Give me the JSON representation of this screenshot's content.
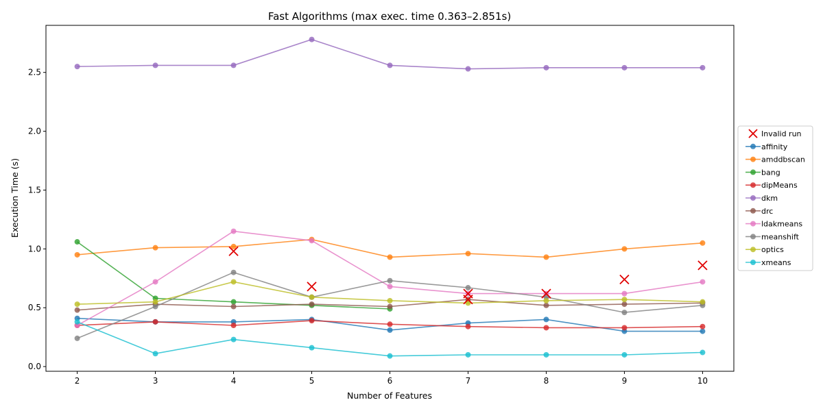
{
  "chart_data": {
    "type": "line",
    "title": "Fast Algorithms (max exec. time 0.363–2.851s)",
    "xlabel": "Number of Features",
    "ylabel": "Execution Time (s)",
    "x": [
      2,
      3,
      4,
      5,
      6,
      7,
      8,
      9,
      10
    ],
    "xlim": [
      1.6,
      10.4
    ],
    "ylim": [
      -0.04,
      2.9
    ],
    "x_ticks": [
      "2",
      "3",
      "4",
      "5",
      "6",
      "7",
      "8",
      "9",
      "10"
    ],
    "y_ticks": [
      "0.0",
      "0.5",
      "1.0",
      "1.5",
      "2.0",
      "2.5"
    ],
    "grid": false,
    "legend_position": "right",
    "series": [
      {
        "name": "affinity",
        "color": "#1f77b4",
        "values": [
          0.41,
          0.38,
          0.38,
          0.4,
          0.31,
          0.37,
          0.4,
          0.3,
          0.3
        ]
      },
      {
        "name": "amddbscan",
        "color": "#ff7f0e",
        "values": [
          0.95,
          1.01,
          1.02,
          1.08,
          0.93,
          0.96,
          0.93,
          1.0,
          1.05
        ]
      },
      {
        "name": "bang",
        "color": "#2ca02c",
        "values": [
          1.06,
          0.58,
          0.55,
          0.52,
          0.49,
          null,
          null,
          null,
          null
        ]
      },
      {
        "name": "dipMeans",
        "color": "#d62728",
        "values": [
          0.35,
          0.38,
          0.35,
          0.39,
          0.36,
          0.34,
          0.33,
          0.33,
          0.34
        ]
      },
      {
        "name": "dkm",
        "color": "#9467bd",
        "values": [
          2.55,
          2.56,
          2.56,
          2.78,
          2.56,
          2.53,
          2.54,
          2.54,
          2.54
        ]
      },
      {
        "name": "drc",
        "color": "#8c564b",
        "values": [
          0.48,
          0.53,
          0.51,
          0.53,
          0.51,
          0.57,
          0.52,
          0.53,
          0.54
        ]
      },
      {
        "name": "ldakmeans",
        "color": "#e377c2",
        "values": [
          0.35,
          0.72,
          1.15,
          1.07,
          0.68,
          0.62,
          0.62,
          0.62,
          0.72
        ]
      },
      {
        "name": "meanshift",
        "color": "#7f7f7f",
        "values": [
          0.24,
          0.51,
          0.8,
          0.59,
          0.73,
          0.67,
          0.59,
          0.46,
          0.52
        ]
      },
      {
        "name": "optics",
        "color": "#bcbd22",
        "values": [
          0.53,
          0.55,
          0.72,
          0.59,
          0.56,
          0.54,
          0.56,
          0.57,
          0.55
        ]
      },
      {
        "name": "xmeans",
        "color": "#17becf",
        "values": [
          0.38,
          0.11,
          0.23,
          0.16,
          0.09,
          0.1,
          0.1,
          0.1,
          0.12
        ]
      }
    ],
    "invalid_runs": {
      "name": "Invalid run",
      "color": "#e00000",
      "points": [
        {
          "x": 4,
          "y": 0.98
        },
        {
          "x": 5,
          "y": 0.68
        },
        {
          "x": 7,
          "y": 0.62
        },
        {
          "x": 7,
          "y": 0.57
        },
        {
          "x": 8,
          "y": 0.62
        },
        {
          "x": 9,
          "y": 0.74
        },
        {
          "x": 10,
          "y": 0.86
        }
      ]
    }
  }
}
